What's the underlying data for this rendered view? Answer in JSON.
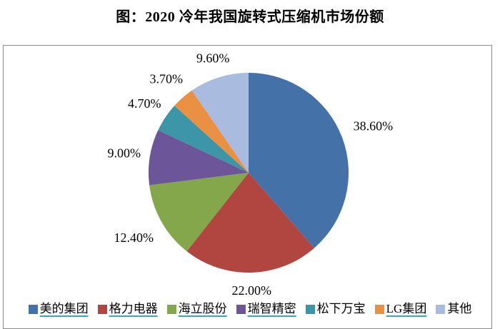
{
  "page": {
    "background": "#ffffff",
    "frame_border_color": "#8c8c8c"
  },
  "chart_data": {
    "type": "pie",
    "title": "图：2020 冷年我国旋转式压缩机市场份额",
    "categories": [
      "美的集团",
      "格力电器",
      "海立股份",
      "瑞智精密",
      "松下万宝",
      "LG集团",
      "其他"
    ],
    "values": [
      38.6,
      22.0,
      12.4,
      9.0,
      4.7,
      3.7,
      9.6
    ],
    "labels": [
      "38.60%",
      "22.00%",
      "12.40%",
      "9.00%",
      "4.70%",
      "3.70%",
      "9.60%"
    ],
    "colors": [
      "#4472A8",
      "#B1453F",
      "#84A74C",
      "#6C5699",
      "#3D95A8",
      "#EA9043",
      "#A9BCE0"
    ],
    "legend_underline": [
      true,
      true,
      true,
      true,
      false,
      true,
      false
    ],
    "underline_color": "#35A8BC",
    "label_color": "#000000",
    "start_angle_deg": 0,
    "direction": "clockwise",
    "legend_position": "bottom",
    "label_radius": [
      1.33,
      1.18,
      1.32,
      1.26,
      1.25,
      1.25,
      1.2
    ]
  }
}
